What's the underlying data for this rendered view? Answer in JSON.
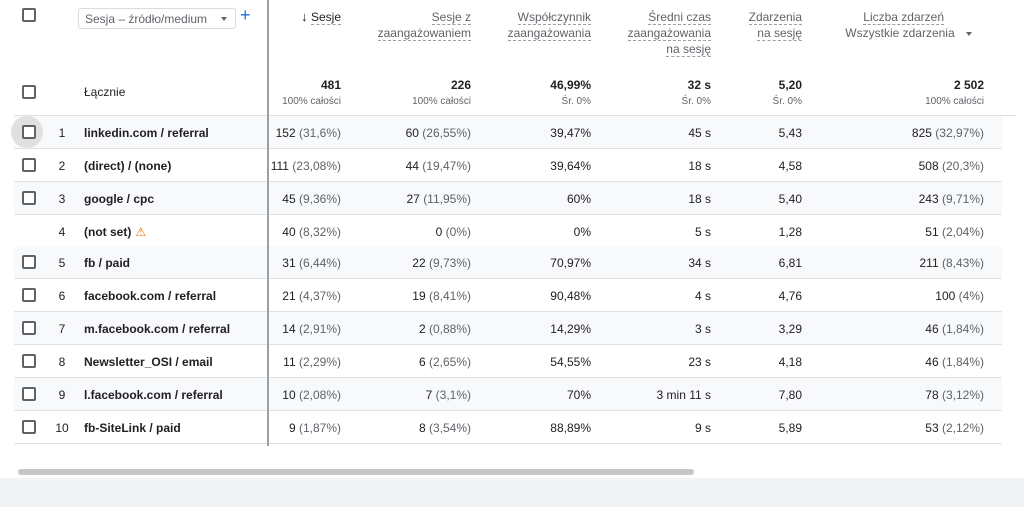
{
  "header": {
    "dimension_label": "Sesja – źródło/medium",
    "add_icon": "plus-icon",
    "sort_icon": "arrow-down-icon",
    "columns": [
      {
        "line1": "Sesje",
        "line2": "",
        "line3": ""
      },
      {
        "line1": "Sesje z",
        "line2": "zaangażowaniem",
        "line3": ""
      },
      {
        "line1": "Współczynnik",
        "line2": "zaangażowania",
        "line3": ""
      },
      {
        "line1": "Średni czas",
        "line2": "zaangażowania",
        "line3": "na sesję"
      },
      {
        "line1": "Zdarzenia",
        "line2": "na sesję",
        "line3": ""
      },
      {
        "line1": "Liczba zdarzeń",
        "line2": "Wszystkie zdarzenia",
        "line3": ""
      }
    ]
  },
  "totals": {
    "label": "Łącznie",
    "values": [
      "481",
      "226",
      "46,99%",
      "32 s",
      "5,20",
      "2 502"
    ],
    "subs": [
      "100% całości",
      "100% całości",
      "Śr. 0%",
      "Śr. 0%",
      "Śr. 0%",
      "100% całości"
    ]
  },
  "rows": [
    {
      "idx": "1",
      "dim": "linkedin.com / referral",
      "warn": false,
      "c1": "152",
      "p1": "(31,6%)",
      "c2": "60",
      "p2": "(26,55%)",
      "c3": "39,47%",
      "c4": "45 s",
      "c5": "5,43",
      "c6": "825",
      "p6": "(32,97%)"
    },
    {
      "idx": "2",
      "dim": "(direct) / (none)",
      "warn": false,
      "c1": "111",
      "p1": "(23,08%)",
      "c2": "44",
      "p2": "(19,47%)",
      "c3": "39,64%",
      "c4": "18 s",
      "c5": "4,58",
      "c6": "508",
      "p6": "(20,3%)"
    },
    {
      "idx": "3",
      "dim": "google / cpc",
      "warn": false,
      "c1": "45",
      "p1": "(9,36%)",
      "c2": "27",
      "p2": "(11,95%)",
      "c3": "60%",
      "c4": "18 s",
      "c5": "5,40",
      "c6": "243",
      "p6": "(9,71%)"
    },
    {
      "idx": "4",
      "dim": "(not set)",
      "warn": true,
      "c1": "40",
      "p1": "(8,32%)",
      "c2": "0",
      "p2": "(0%)",
      "c3": "0%",
      "c4": "5 s",
      "c5": "1,28",
      "c6": "51",
      "p6": "(2,04%)"
    },
    {
      "idx": "5",
      "dim": "fb / paid",
      "warn": false,
      "c1": "31",
      "p1": "(6,44%)",
      "c2": "22",
      "p2": "(9,73%)",
      "c3": "70,97%",
      "c4": "34 s",
      "c5": "6,81",
      "c6": "211",
      "p6": "(8,43%)"
    },
    {
      "idx": "6",
      "dim": "facebook.com / referral",
      "warn": false,
      "c1": "21",
      "p1": "(4,37%)",
      "c2": "19",
      "p2": "(8,41%)",
      "c3": "90,48%",
      "c4": "4 s",
      "c5": "4,76",
      "c6": "100",
      "p6": "(4%)"
    },
    {
      "idx": "7",
      "dim": "m.facebook.com / referral",
      "warn": false,
      "c1": "14",
      "p1": "(2,91%)",
      "c2": "2",
      "p2": "(0,88%)",
      "c3": "14,29%",
      "c4": "3 s",
      "c5": "3,29",
      "c6": "46",
      "p6": "(1,84%)"
    },
    {
      "idx": "8",
      "dim": "Newsletter_OSI / email",
      "warn": false,
      "c1": "11",
      "p1": "(2,29%)",
      "c2": "6",
      "p2": "(2,65%)",
      "c3": "54,55%",
      "c4": "23 s",
      "c5": "4,18",
      "c6": "46",
      "p6": "(1,84%)"
    },
    {
      "idx": "9",
      "dim": "l.facebook.com / referral",
      "warn": false,
      "c1": "10",
      "p1": "(2,08%)",
      "c2": "7",
      "p2": "(3,1%)",
      "c3": "70%",
      "c4": "3 min 11 s",
      "c5": "7,80",
      "c6": "78",
      "p6": "(3,12%)"
    },
    {
      "idx": "10",
      "dim": "fb-SiteLink / paid",
      "warn": false,
      "c1": "9",
      "p1": "(1,87%)",
      "c2": "8",
      "p2": "(3,54%)",
      "c3": "88,89%",
      "c4": "9 s",
      "c5": "5,89",
      "c6": "53",
      "p6": "(2,12%)"
    }
  ]
}
